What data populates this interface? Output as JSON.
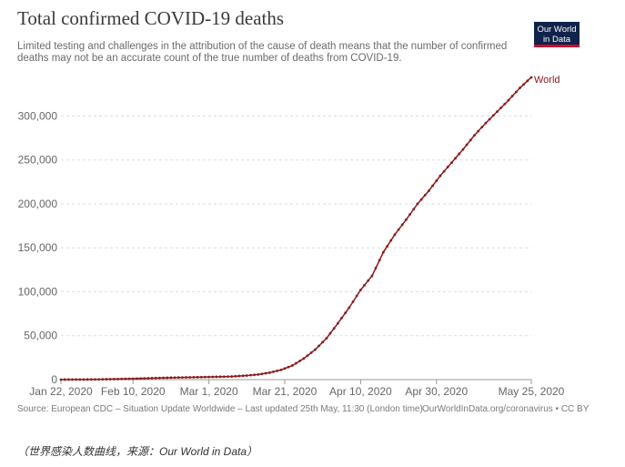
{
  "chart_data": {
    "type": "line",
    "title": "Total confirmed COVID-19 deaths",
    "subtitle": "Limited testing and challenges in the attribution of the cause of death means that the number of confirmed deaths may not be an accurate count of the true number of deaths from COVID-19.",
    "xlabel": "",
    "ylabel": "",
    "ylim": [
      0,
      345000
    ],
    "y_ticks": [
      0,
      50000,
      100000,
      150000,
      200000,
      250000,
      300000
    ],
    "y_tick_labels": [
      "0",
      "50,000",
      "100,000",
      "150,000",
      "200,000",
      "250,000",
      "300,000"
    ],
    "x_range": [
      "2020-01-22",
      "2020-05-25"
    ],
    "x_ticks": [
      "2020-01-22",
      "2020-02-10",
      "2020-03-01",
      "2020-03-21",
      "2020-04-10",
      "2020-04-30",
      "2020-05-25"
    ],
    "x_tick_labels": [
      "Jan 22, 2020",
      "Feb 10, 2020",
      "Mar 1, 2020",
      "Mar 21, 2020",
      "Apr 10, 2020",
      "Apr 30, 2020",
      "May 25, 2020"
    ],
    "grid": "horizontal dashed",
    "line_color": "#8b1a1a",
    "series": [
      {
        "name": "World",
        "color": "#8b1a1a",
        "points": [
          [
            "2020-01-22",
            17
          ],
          [
            "2020-02-01",
            259
          ],
          [
            "2020-02-10",
            1018
          ],
          [
            "2020-02-20",
            2247
          ],
          [
            "2020-03-01",
            2996
          ],
          [
            "2020-03-07",
            3560
          ],
          [
            "2020-03-11",
            4600
          ],
          [
            "2020-03-14",
            5800
          ],
          [
            "2020-03-17",
            7900
          ],
          [
            "2020-03-20",
            11000
          ],
          [
            "2020-03-23",
            16000
          ],
          [
            "2020-03-26",
            24000
          ],
          [
            "2020-03-29",
            34000
          ],
          [
            "2020-04-01",
            47000
          ],
          [
            "2020-04-04",
            64000
          ],
          [
            "2020-04-07",
            82000
          ],
          [
            "2020-04-10",
            102000
          ],
          [
            "2020-04-13",
            118000
          ],
          [
            "2020-04-16",
            145000
          ],
          [
            "2020-04-19",
            165000
          ],
          [
            "2020-04-22",
            182000
          ],
          [
            "2020-04-25",
            200000
          ],
          [
            "2020-04-28",
            215000
          ],
          [
            "2020-05-01",
            232000
          ],
          [
            "2020-05-04",
            247000
          ],
          [
            "2020-05-07",
            262000
          ],
          [
            "2020-05-10",
            278000
          ],
          [
            "2020-05-13",
            292000
          ],
          [
            "2020-05-16",
            305000
          ],
          [
            "2020-05-19",
            318000
          ],
          [
            "2020-05-22",
            332000
          ],
          [
            "2020-05-25",
            344000
          ]
        ]
      }
    ]
  },
  "logo": {
    "line1": "Our World",
    "line2": "in Data"
  },
  "footer": {
    "source": "Source: European CDC – Situation Update Worldwide – Last updated 25th May, 11:30 (London time)",
    "link": "OurWorldInData.org/coronavirus • CC BY"
  },
  "caption": "（世界感染人数曲线，来源：Our World in Data）"
}
